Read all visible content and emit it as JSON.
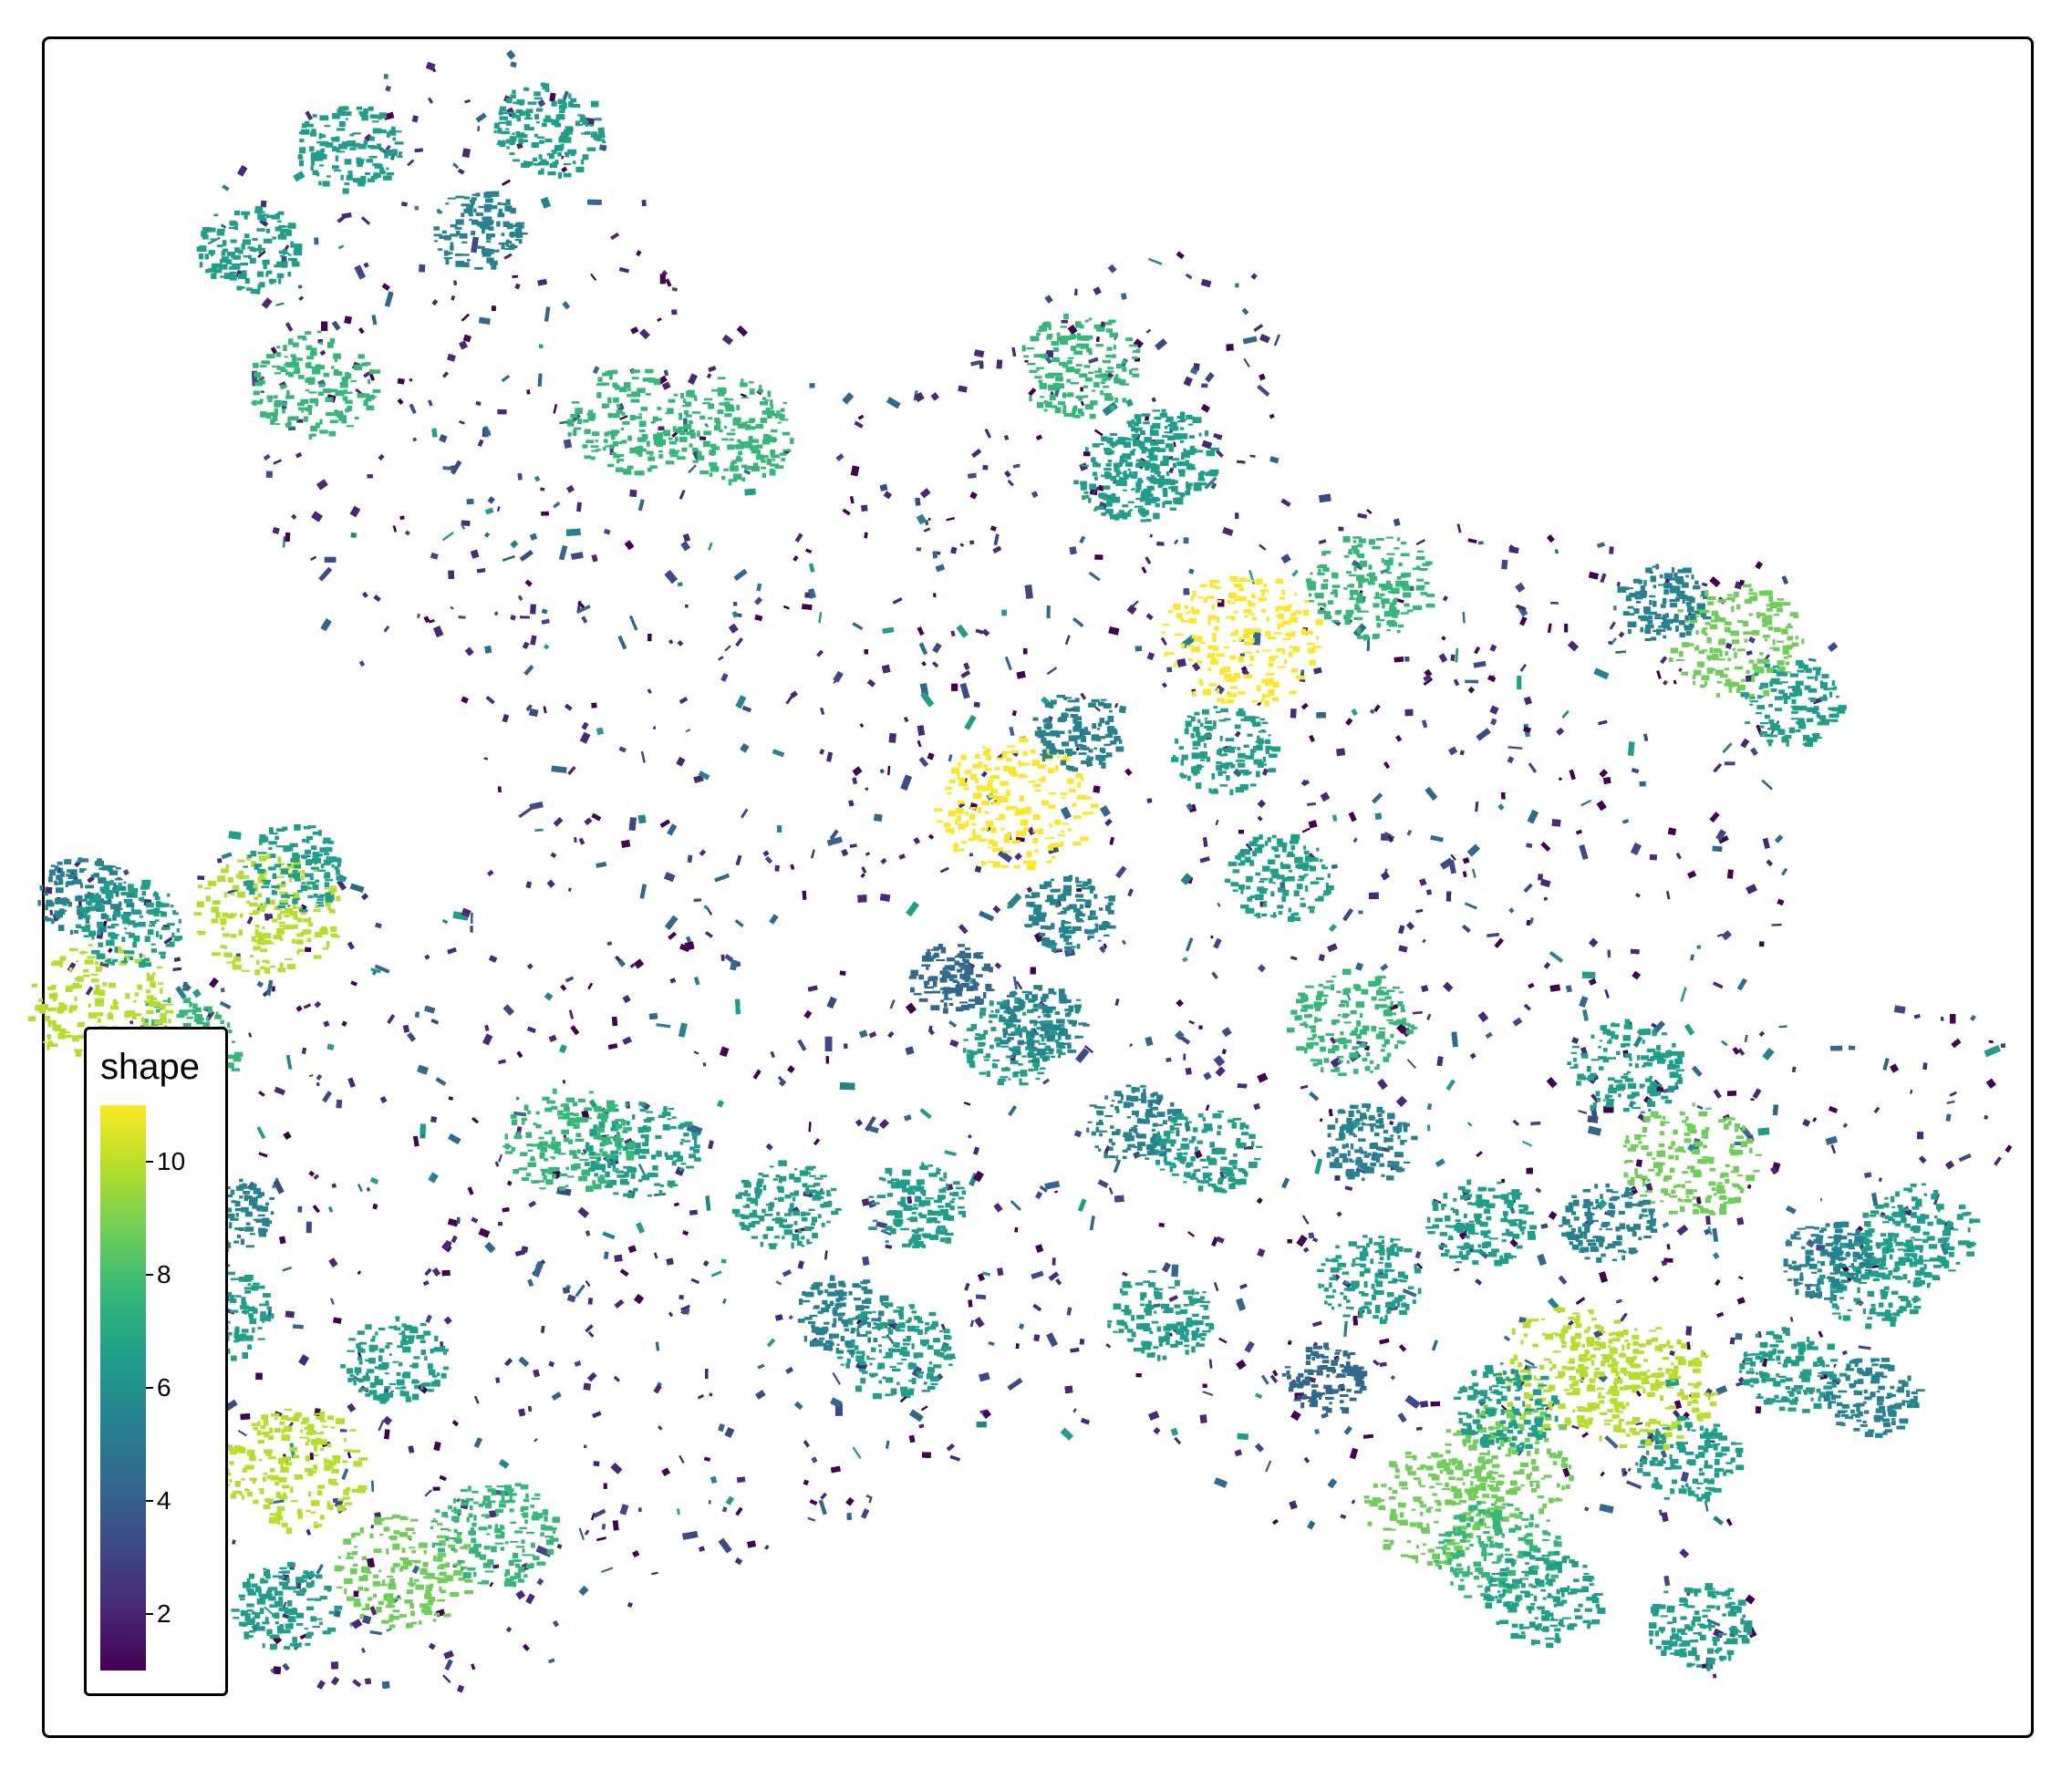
{
  "legend": {
    "title": "shape",
    "min": 1,
    "max": 11,
    "ticks": [
      {
        "value": 2,
        "label": "2"
      },
      {
        "value": 4,
        "label": "4"
      },
      {
        "value": 6,
        "label": "6"
      },
      {
        "value": 8,
        "label": "8"
      },
      {
        "value": 10,
        "label": "10"
      }
    ],
    "colormap": [
      "#440154",
      "#482878",
      "#3e4989",
      "#31688e",
      "#26828e",
      "#1f9e89",
      "#35b779",
      "#6ece58",
      "#b5de2b",
      "#fde725"
    ]
  },
  "map": {
    "background": "#ffffff",
    "feature_value_range": [
      1,
      11
    ]
  }
}
